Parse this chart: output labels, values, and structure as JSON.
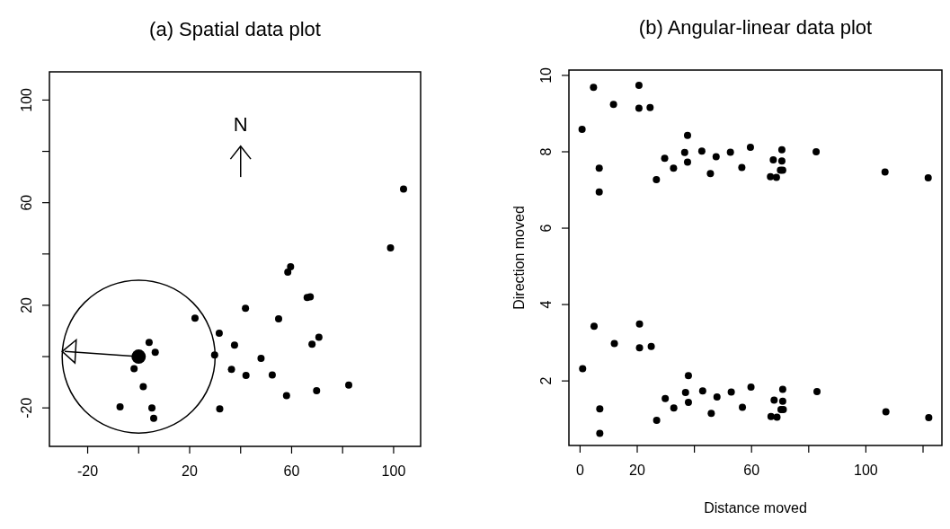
{
  "chart_data": [
    {
      "type": "scatter",
      "title": "(a)  Spatial data plot",
      "annotations": [
        "N"
      ],
      "marker": "circle",
      "xlim": [
        -35,
        110.6
      ],
      "ylim": [
        -35,
        111
      ],
      "xticks": [
        -20,
        {
          "value": 0,
          "label": null
        },
        20,
        {
          "value": 40,
          "label": null
        },
        60,
        {
          "value": 80,
          "label": null
        },
        100
      ],
      "yticks": [
        -20,
        {
          "value": 0,
          "label": null
        },
        20,
        {
          "value": 40,
          "label": null
        },
        60,
        {
          "value": 80,
          "label": null
        },
        100
      ],
      "series": [
        {
          "color": "#000000",
          "x": [
            103.9,
            98.8,
            59.6,
            58.5,
            67.3,
            66.1,
            41.9,
            22.1,
            54.9,
            31.6,
            70.7,
            68,
            37.6,
            4.1,
            6.5,
            29.8,
            48,
            -1.8,
            36.4,
            42.1,
            52.4,
            1.8,
            82.4,
            69.8,
            58,
            -7.3,
            5.2,
            31.8,
            5.9
          ],
          "values": [
            65.3,
            42.4,
            35,
            32.9,
            23.3,
            23,
            18.8,
            15,
            14.7,
            9.1,
            7.5,
            4.8,
            4.5,
            5.5,
            1.7,
            0.6,
            -0.7,
            -4.7,
            -5,
            -7.3,
            -7.2,
            -11.7,
            -11.1,
            -13.3,
            -15.2,
            -19.6,
            -20,
            -20.4,
            -24.1
          ]
        },
        {
          "color": "#000000",
          "x": [
            0
          ],
          "values": [
            0
          ]
        }
      ]
    },
    {
      "type": "scatter",
      "title": "(b)  Angular-linear data plot",
      "xlabel": "Distance moved",
      "ylabel": "Direction moved",
      "marker": "circle",
      "xlim": [
        -3.9,
        126.6
      ],
      "ylim": [
        0.31,
        10.14
      ],
      "xticks": [
        0,
        20,
        {
          "value": 40,
          "label": null
        },
        60,
        {
          "value": 80,
          "label": null
        },
        100,
        {
          "value": 120,
          "label": null
        }
      ],
      "yticks": [
        2,
        4,
        6,
        8,
        10
      ],
      "series": [
        {
          "color": "#000000",
          "x": [
            0.7,
            4.7,
            6.7,
            6.7,
            11.7,
            20.6,
            20.6,
            24.5,
            26.7,
            29.6,
            32.7,
            36.6,
            37.6,
            37.6,
            42.6,
            45.6,
            47.6,
            52.6,
            56.6,
            59.6,
            66.6,
            67.6,
            68.7,
            70.6,
            70.6,
            70.1,
            70.9,
            82.6,
            106.7,
            121.8,
            0.9,
            4.9,
            6.9,
            6.9,
            12,
            20.8,
            20.8,
            24.9,
            26.8,
            29.8,
            32.8,
            36.9,
            37.9,
            37.9,
            42.9,
            45.9,
            47.9,
            52.9,
            56.8,
            59.8,
            66.8,
            67.9,
            68.9,
            70.9,
            70.9,
            70.3,
            71.1,
            82.9,
            107,
            122
          ],
          "values": [
            8.59,
            9.69,
            7.57,
            6.95,
            9.24,
            9.74,
            9.14,
            9.16,
            7.27,
            7.83,
            7.57,
            7.98,
            8.43,
            7.73,
            8.02,
            7.43,
            7.87,
            7.99,
            7.59,
            8.12,
            7.35,
            7.79,
            7.33,
            8.05,
            7.76,
            7.52,
            7.52,
            8.0,
            7.47,
            7.32,
            2.32,
            3.43,
            1.27,
            0.63,
            2.98,
            3.49,
            2.87,
            2.9,
            0.97,
            1.54,
            1.29,
            1.7,
            2.14,
            1.44,
            1.74,
            1.15,
            1.58,
            1.71,
            1.31,
            1.84,
            1.07,
            1.5,
            1.05,
            1.78,
            1.47,
            1.25,
            1.25,
            1.72,
            1.19,
            1.04
          ]
        }
      ]
    }
  ]
}
